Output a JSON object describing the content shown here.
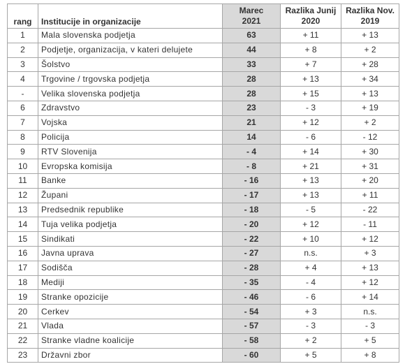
{
  "table": {
    "headers": {
      "rang": "rang",
      "institution": "Institucije in organizacije",
      "marec_line1": "Marec",
      "marec_line2": "2021",
      "junij_line1": "Razlika Junij",
      "junij_line2": "2020",
      "nov_line1": "Razlika Nov.",
      "nov_line2": "2019"
    },
    "rows": [
      {
        "rank": "1",
        "name": "Mala slovenska podjetja",
        "marec": "63",
        "junij": "+ 11",
        "nov": "+ 13"
      },
      {
        "rank": "2",
        "name": "Podjetje, organizacija, v kateri delujete",
        "marec": "44",
        "junij": "+ 8",
        "nov": "+ 2"
      },
      {
        "rank": "3",
        "name": "Šolstvo",
        "marec": "33",
        "junij": "+ 7",
        "nov": "+ 28"
      },
      {
        "rank": "4",
        "name": "Trgovine / trgovska podjetja",
        "marec": "28",
        "junij": "+ 13",
        "nov": "+ 34"
      },
      {
        "rank": "-",
        "name": "Velika slovenska podjetja",
        "marec": "28",
        "junij": "+ 15",
        "nov": "+ 13"
      },
      {
        "rank": "6",
        "name": "Zdravstvo",
        "marec": "23",
        "junij": "- 3",
        "nov": "+ 19"
      },
      {
        "rank": "7",
        "name": "Vojska",
        "marec": "21",
        "junij": "+ 12",
        "nov": "+ 2"
      },
      {
        "rank": "8",
        "name": "Policija",
        "marec": "14",
        "junij": "- 6",
        "nov": "- 12"
      },
      {
        "rank": "9",
        "name": "RTV Slovenija",
        "marec": "- 4",
        "junij": "+ 14",
        "nov": "+ 30"
      },
      {
        "rank": "10",
        "name": "Evropska komisija",
        "marec": "- 8",
        "junij": "+ 21",
        "nov": "+ 31"
      },
      {
        "rank": "11",
        "name": "Banke",
        "marec": "- 16",
        "junij": "+ 13",
        "nov": "+ 20"
      },
      {
        "rank": "12",
        "name": "Župani",
        "marec": "- 17",
        "junij": "+ 13",
        "nov": "+ 11"
      },
      {
        "rank": "13",
        "name": "Predsednik republike",
        "marec": "- 18",
        "junij": "- 5",
        "nov": "- 22"
      },
      {
        "rank": "14",
        "name": "Tuja velika podjetja",
        "marec": "- 20",
        "junij": "+ 12",
        "nov": "- 11"
      },
      {
        "rank": "15",
        "name": "Sindikati",
        "marec": "- 22",
        "junij": "+ 10",
        "nov": "+ 12"
      },
      {
        "rank": "16",
        "name": "Javna uprava",
        "marec": "- 27",
        "junij": "n.s.",
        "nov": "+ 3"
      },
      {
        "rank": "17",
        "name": "Sodišča",
        "marec": "- 28",
        "junij": "+ 4",
        "nov": "+ 13"
      },
      {
        "rank": "18",
        "name": "Mediji",
        "marec": "- 35",
        "junij": "- 4",
        "nov": "+ 12"
      },
      {
        "rank": "19",
        "name": "Stranke opozicije",
        "marec": "- 46",
        "junij": "- 6",
        "nov": "+ 14"
      },
      {
        "rank": "20",
        "name": "Cerkev",
        "marec": "- 54",
        "junij": "+ 3",
        "nov": "n.s."
      },
      {
        "rank": "21",
        "name": "Vlada",
        "marec": "- 57",
        "junij": "- 3",
        "nov": "- 3"
      },
      {
        "rank": "22",
        "name": "Stranke vladne koalicije",
        "marec": "- 58",
        "junij": "+ 2",
        "nov": "+ 5"
      },
      {
        "rank": "23",
        "name": "Državni zbor",
        "marec": "- 60",
        "junij": "+ 5",
        "nov": "+ 8"
      }
    ]
  }
}
